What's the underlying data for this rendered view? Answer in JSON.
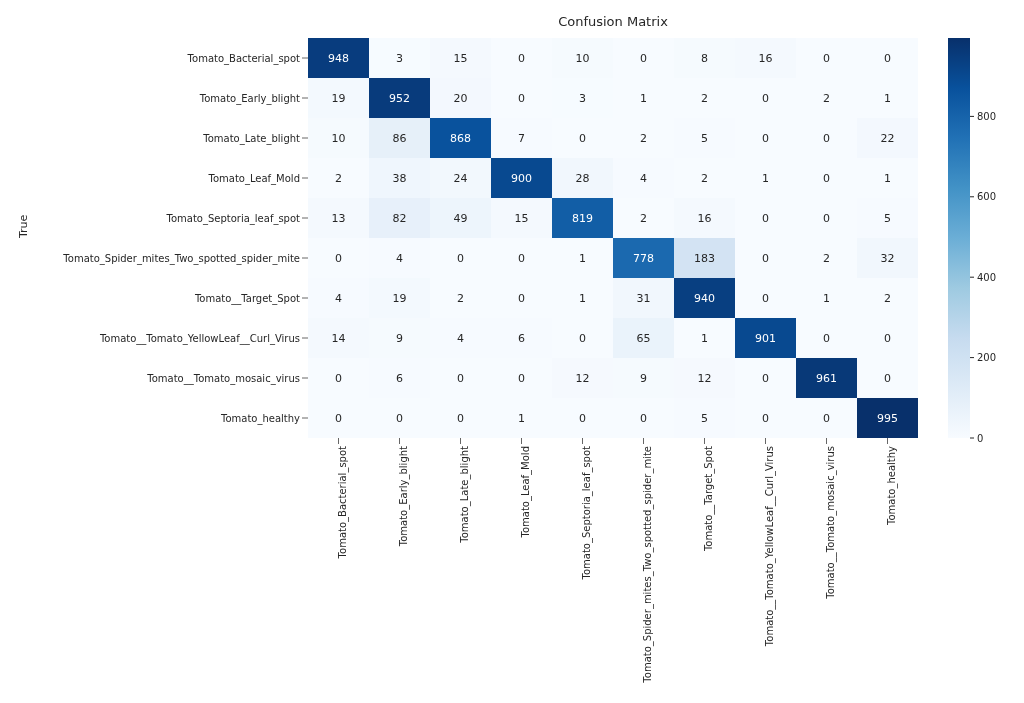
{
  "chart_data": {
    "type": "heatmap",
    "title": "Confusion Matrix",
    "ylabel": "True",
    "categories": [
      "Tomato_Bacterial_spot",
      "Tomato_Early_blight",
      "Tomato_Late_blight",
      "Tomato_Leaf_Mold",
      "Tomato_Septoria_leaf_spot",
      "Tomato_Spider_mites_Two_spotted_spider_mite",
      "Tomato__Target_Spot",
      "Tomato__Tomato_YellowLeaf__Curl_Virus",
      "Tomato__Tomato_mosaic_virus",
      "Tomato_healthy"
    ],
    "y_categories": [
      "Tomato_Bacterial_spot",
      "Tomato_Early_blight",
      "Tomato_Late_blight",
      "Tomato_Leaf_Mold",
      "Tomato_Septoria_leaf_spot",
      "Tomato_Spider_mites_Two_spotted_spider_mite",
      "Tomato__Target_Spot",
      "Tomato__Tomato_YellowLeaf__Curl_Virus",
      "Tomato__Tomato_mosaic_virus",
      "Tomato_healthy"
    ],
    "cells": [
      [
        948,
        3,
        15,
        0,
        10,
        0,
        8,
        16,
        0,
        0
      ],
      [
        19,
        952,
        20,
        0,
        3,
        1,
        2,
        0,
        2,
        1
      ],
      [
        10,
        86,
        868,
        7,
        0,
        2,
        5,
        0,
        0,
        22
      ],
      [
        2,
        38,
        24,
        900,
        28,
        4,
        2,
        1,
        0,
        1
      ],
      [
        13,
        82,
        49,
        15,
        819,
        2,
        16,
        0,
        0,
        5
      ],
      [
        0,
        4,
        0,
        0,
        1,
        778,
        183,
        0,
        2,
        32
      ],
      [
        4,
        19,
        2,
        0,
        1,
        31,
        940,
        0,
        1,
        2
      ],
      [
        14,
        9,
        4,
        6,
        0,
        65,
        1,
        901,
        0,
        0
      ],
      [
        0,
        6,
        0,
        0,
        12,
        9,
        12,
        0,
        961,
        0
      ],
      [
        0,
        0,
        0,
        1,
        0,
        0,
        5,
        0,
        0,
        995
      ]
    ],
    "clim": [
      0,
      995
    ],
    "cticks": [
      0,
      200,
      400,
      600,
      800
    ],
    "data_labels": true
  }
}
